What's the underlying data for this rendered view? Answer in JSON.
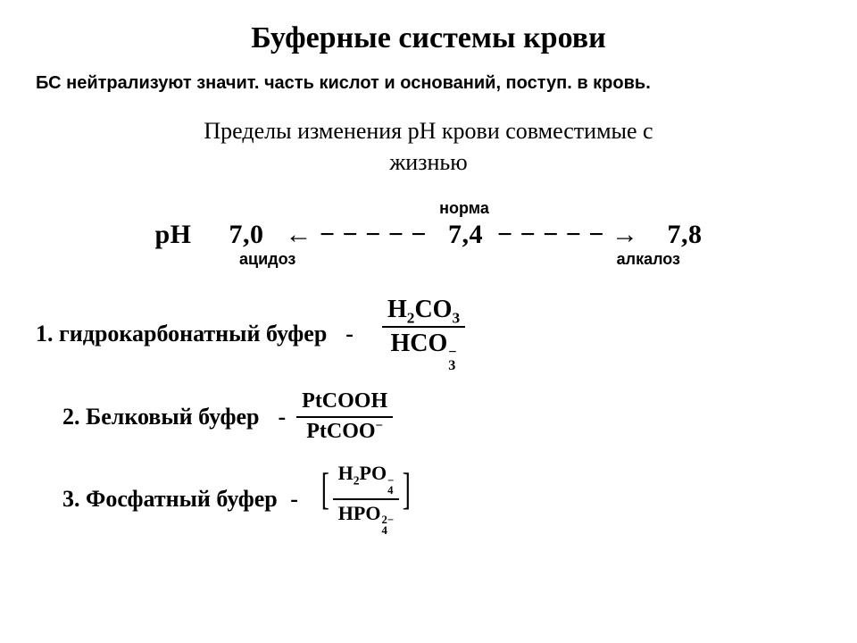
{
  "title": "Буферные системы крови",
  "subtitle": "БС нейтрализуют значит. часть кислот и оснований, поступ. в кровь.",
  "intro_line1": "Пределы изменения рН крови совместимые с",
  "intro_line2": "жизнью",
  "ph": {
    "norm_label": "норма",
    "prefix": "pH",
    "low": "7,0",
    "mid": "7,4",
    "high": "7,8",
    "arrow_left": "← − − − − −",
    "arrow_right": "− − − − − →",
    "acidosis": "ацидоз",
    "alkalosis": "алкалоз"
  },
  "buffers": {
    "b1": {
      "label": "1. гидрокарбонатный буфер",
      "dash": "-"
    },
    "b2": {
      "label": "2. Белковый буфер",
      "dash": "-"
    },
    "b3": {
      "label": "3. Фосфатный буфер",
      "dash": "-"
    }
  },
  "formulas": {
    "f1_num_a": "H",
    "f1_num_b": "2",
    "f1_num_c": "CO",
    "f1_num_d": "3",
    "f1_den_a": "HCO",
    "f1_den_b": "3",
    "f1_den_sup": "−",
    "f2_num": "PtCOOH",
    "f2_den_a": "PtCOO",
    "f2_den_sup": "−",
    "f3_num_a": "H",
    "f3_num_b": "2",
    "f3_num_c": "PO",
    "f3_num_sup": "−",
    "f3_num_sub": "4",
    "f3_den_a": "HPO",
    "f3_den_sup": "2−",
    "f3_den_sub": "4"
  },
  "colors": {
    "bg": "#ffffff",
    "text": "#000000"
  }
}
